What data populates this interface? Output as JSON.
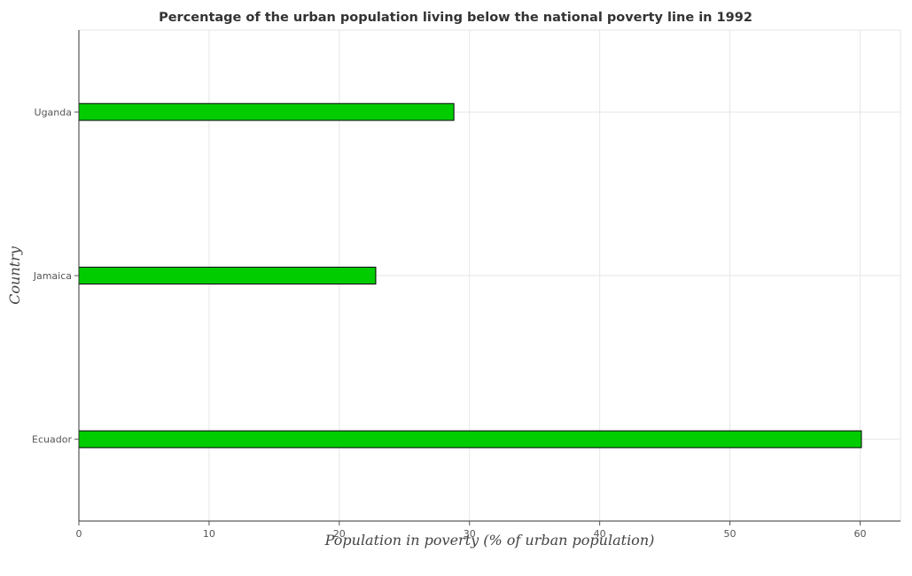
{
  "chart_data": {
    "type": "bar",
    "orientation": "horizontal",
    "title": "Percentage of the urban population living below the national poverty line in 1992",
    "xlabel": "Population in poverty (% of urban population)",
    "ylabel": "Country",
    "categories": [
      "Ecuador",
      "Jamaica",
      "Uganda"
    ],
    "values": [
      60.1,
      22.8,
      28.8
    ],
    "xlim": [
      0,
      63.1
    ],
    "xticks": [
      0,
      10,
      20,
      30,
      40,
      50,
      60
    ],
    "tick_labels": [
      "0",
      "10",
      "20",
      "30",
      "40",
      "50",
      "60"
    ],
    "grid": true,
    "bar_color": "#00cc00"
  }
}
